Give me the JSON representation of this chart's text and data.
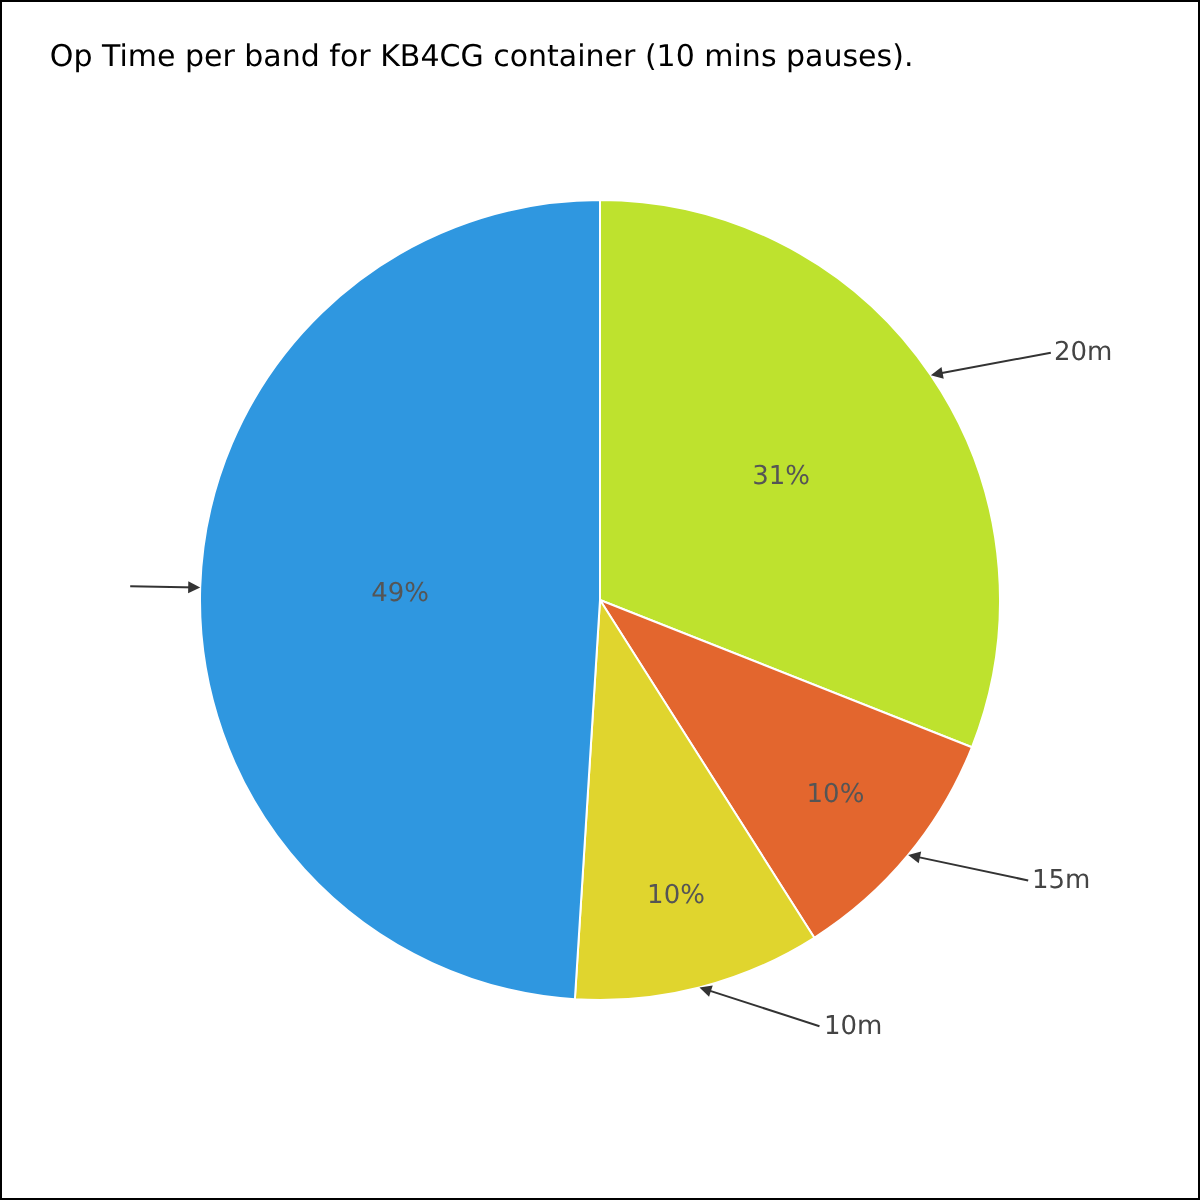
{
  "chart_data": {
    "type": "pie",
    "title": "Op Time per band for KB4CG container (10 mins pauses).",
    "categories": [
      "20m",
      "15m",
      "10m",
      null
    ],
    "values": [
      31,
      10,
      10,
      49
    ],
    "value_labels": [
      "31%",
      "10%",
      "10%",
      "49%"
    ],
    "colors": [
      "#bee22e",
      "#e3662e",
      "#e0d52e",
      "#2f97e0"
    ],
    "legend": false
  }
}
